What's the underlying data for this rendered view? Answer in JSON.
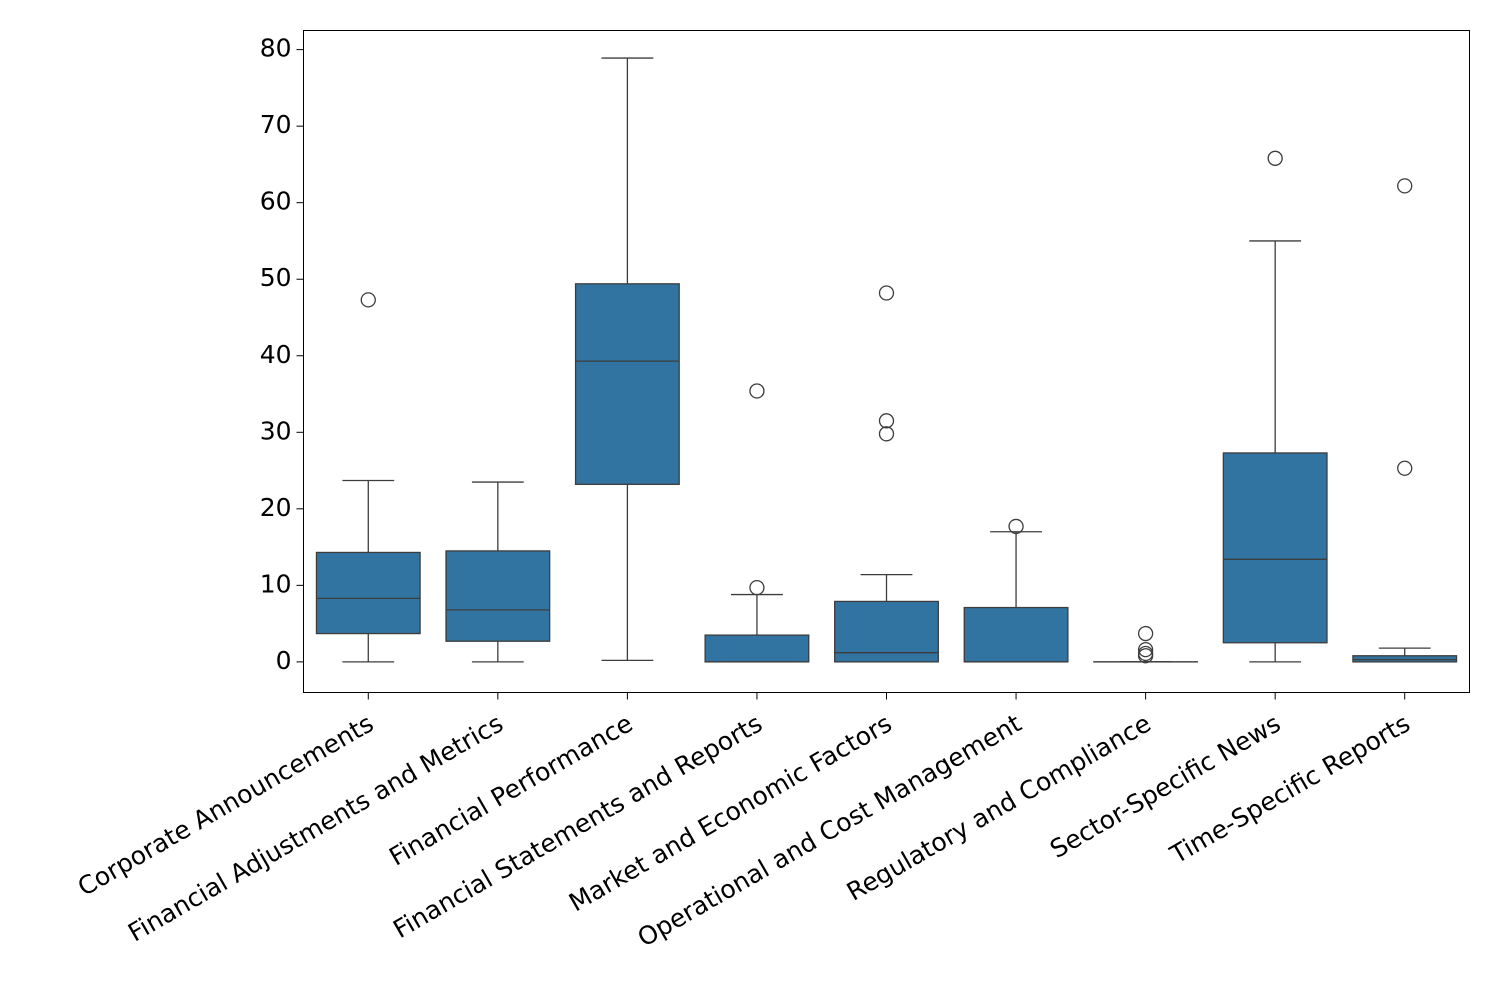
{
  "chart_data": {
    "type": "boxplot",
    "title": "",
    "xlabel": "",
    "ylabel": "",
    "ylim": [
      -4,
      82.5
    ],
    "yticks": [
      0,
      10,
      20,
      30,
      40,
      50,
      60,
      70,
      80
    ],
    "grid": false,
    "box_color": "#3274a1",
    "line_color": "#3d3d3d",
    "categories": [
      "Corporate Announcements",
      "Financial Adjustments and Metrics",
      "Financial Performance",
      "Financial Statements and Reports",
      "Market and Economic Factors",
      "Operational and Cost Management",
      "Regulatory and Compliance",
      "Sector-Specific News",
      "Time-Specific Reports"
    ],
    "series": [
      {
        "name": "Corporate Announcements",
        "whisker_low": 0,
        "q1": 3.7,
        "median": 8.3,
        "q3": 14.3,
        "whisker_high": 23.7,
        "outliers": [
          47.3
        ]
      },
      {
        "name": "Financial Adjustments and Metrics",
        "whisker_low": 0,
        "q1": 2.7,
        "median": 6.8,
        "q3": 14.5,
        "whisker_high": 23.5,
        "outliers": []
      },
      {
        "name": "Financial Performance",
        "whisker_low": 0.2,
        "q1": 23.2,
        "median": 39.3,
        "q3": 49.4,
        "whisker_high": 78.9,
        "outliers": []
      },
      {
        "name": "Financial Statements and Reports",
        "whisker_low": 0,
        "q1": 0,
        "median": 0,
        "q3": 3.5,
        "whisker_high": 8.8,
        "outliers": [
          9.7,
          35.4
        ]
      },
      {
        "name": "Market and Economic Factors",
        "whisker_low": 0,
        "q1": 0,
        "median": 1.2,
        "q3": 7.9,
        "whisker_high": 11.4,
        "outliers": [
          29.8,
          31.5,
          48.2
        ]
      },
      {
        "name": "Operational and Cost Management",
        "whisker_low": 0,
        "q1": 0,
        "median": 0,
        "q3": 7.1,
        "whisker_high": 17.0,
        "outliers": [
          17.7
        ]
      },
      {
        "name": "Regulatory and Compliance",
        "whisker_low": 0,
        "q1": 0,
        "median": 0,
        "q3": 0,
        "whisker_high": 0,
        "outliers": [
          0.8,
          1.1,
          1.6,
          3.7
        ]
      },
      {
        "name": "Sector-Specific News",
        "whisker_low": 0,
        "q1": 2.5,
        "median": 13.4,
        "q3": 27.3,
        "whisker_high": 55.0,
        "outliers": [
          65.8
        ]
      },
      {
        "name": "Time-Specific Reports",
        "whisker_low": 0,
        "q1": 0,
        "median": 0.3,
        "q3": 0.8,
        "whisker_high": 1.8,
        "outliers": [
          25.3,
          62.2
        ]
      }
    ]
  }
}
